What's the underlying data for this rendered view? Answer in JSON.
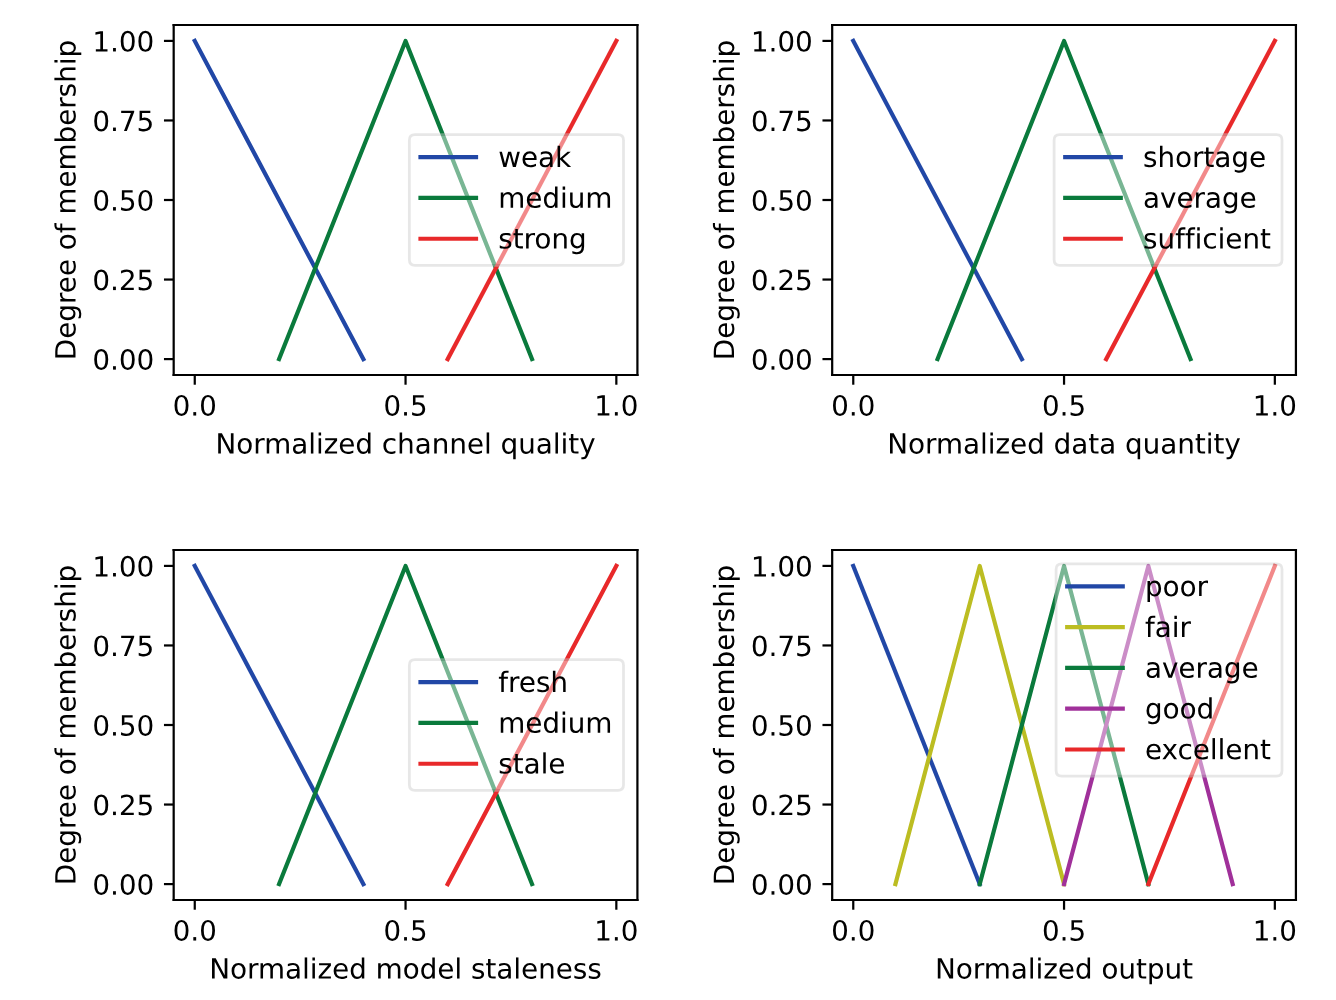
{
  "chart_data": [
    {
      "type": "line",
      "xlabel": "Normalized channel quality",
      "ylabel": "Degree of membership",
      "xlim": [
        -0.05,
        1.05
      ],
      "ylim": [
        -0.05,
        1.05
      ],
      "xticks": [
        {
          "value": 0,
          "label": "0.0"
        },
        {
          "value": 0.5,
          "label": "0.5"
        },
        {
          "value": 1,
          "label": "1.0"
        }
      ],
      "yticks": [
        {
          "value": 0,
          "label": "0.00"
        },
        {
          "value": 0.25,
          "label": "0.25"
        },
        {
          "value": 0.5,
          "label": "0.50"
        },
        {
          "value": 0.75,
          "label": "0.75"
        },
        {
          "value": 1,
          "label": "1.00"
        }
      ],
      "legend": "center right",
      "grid": false,
      "series": [
        {
          "name": "weak",
          "color": "#2147a6",
          "x": [
            0,
            0.4
          ],
          "values": [
            1,
            0
          ]
        },
        {
          "name": "medium",
          "color": "#0a7a3c",
          "x": [
            0.2,
            0.5,
            0.8
          ],
          "values": [
            0,
            1,
            0
          ]
        },
        {
          "name": "strong",
          "color": "#e8292a",
          "x": [
            0.6,
            1
          ],
          "values": [
            0,
            1
          ]
        }
      ]
    },
    {
      "type": "line",
      "xlabel": "Normalized data quantity",
      "ylabel": "Degree of membership",
      "xlim": [
        -0.05,
        1.05
      ],
      "ylim": [
        -0.05,
        1.05
      ],
      "xticks": [
        {
          "value": 0,
          "label": "0.0"
        },
        {
          "value": 0.5,
          "label": "0.5"
        },
        {
          "value": 1,
          "label": "1.0"
        }
      ],
      "yticks": [
        {
          "value": 0,
          "label": "0.00"
        },
        {
          "value": 0.25,
          "label": "0.25"
        },
        {
          "value": 0.5,
          "label": "0.50"
        },
        {
          "value": 0.75,
          "label": "0.75"
        },
        {
          "value": 1,
          "label": "1.00"
        }
      ],
      "legend": "center right",
      "grid": false,
      "series": [
        {
          "name": "shortage",
          "color": "#2147a6",
          "x": [
            0,
            0.4
          ],
          "values": [
            1,
            0
          ]
        },
        {
          "name": "average",
          "color": "#0a7a3c",
          "x": [
            0.2,
            0.5,
            0.8
          ],
          "values": [
            0,
            1,
            0
          ]
        },
        {
          "name": "sufficient",
          "color": "#e8292a",
          "x": [
            0.6,
            1
          ],
          "values": [
            0,
            1
          ]
        }
      ]
    },
    {
      "type": "line",
      "xlabel": "Normalized model staleness",
      "ylabel": "Degree of membership",
      "xlim": [
        -0.05,
        1.05
      ],
      "ylim": [
        -0.05,
        1.05
      ],
      "xticks": [
        {
          "value": 0,
          "label": "0.0"
        },
        {
          "value": 0.5,
          "label": "0.5"
        },
        {
          "value": 1,
          "label": "1.0"
        }
      ],
      "yticks": [
        {
          "value": 0,
          "label": "0.00"
        },
        {
          "value": 0.25,
          "label": "0.25"
        },
        {
          "value": 0.5,
          "label": "0.50"
        },
        {
          "value": 0.75,
          "label": "0.75"
        },
        {
          "value": 1,
          "label": "1.00"
        }
      ],
      "legend": "center right",
      "grid": false,
      "series": [
        {
          "name": "fresh",
          "color": "#2147a6",
          "x": [
            0,
            0.4
          ],
          "values": [
            1,
            0
          ]
        },
        {
          "name": "medium",
          "color": "#0a7a3c",
          "x": [
            0.2,
            0.5,
            0.8
          ],
          "values": [
            0,
            1,
            0
          ]
        },
        {
          "name": "stale",
          "color": "#e8292a",
          "x": [
            0.6,
            1
          ],
          "values": [
            0,
            1
          ]
        }
      ]
    },
    {
      "type": "line",
      "xlabel": "Normalized output",
      "ylabel": "Degree of membership",
      "xlim": [
        -0.05,
        1.05
      ],
      "ylim": [
        -0.05,
        1.05
      ],
      "xticks": [
        {
          "value": 0,
          "label": "0.0"
        },
        {
          "value": 0.5,
          "label": "0.5"
        },
        {
          "value": 1,
          "label": "1.0"
        }
      ],
      "yticks": [
        {
          "value": 0,
          "label": "0.00"
        },
        {
          "value": 0.25,
          "label": "0.25"
        },
        {
          "value": 0.5,
          "label": "0.50"
        },
        {
          "value": 0.75,
          "label": "0.75"
        },
        {
          "value": 1,
          "label": "1.00"
        }
      ],
      "legend": "upper right",
      "grid": false,
      "series": [
        {
          "name": "poor",
          "color": "#2147a6",
          "x": [
            0,
            0.3
          ],
          "values": [
            1,
            0
          ]
        },
        {
          "name": "fair",
          "color": "#bcbd22",
          "x": [
            0.1,
            0.3,
            0.5
          ],
          "values": [
            0,
            1,
            0
          ]
        },
        {
          "name": "average",
          "color": "#0a7a3c",
          "x": [
            0.3,
            0.5,
            0.7
          ],
          "values": [
            0,
            1,
            0
          ]
        },
        {
          "name": "good",
          "color": "#a0309a",
          "x": [
            0.5,
            0.7,
            0.9
          ],
          "values": [
            0,
            1,
            0
          ]
        },
        {
          "name": "excellent",
          "color": "#e8292a",
          "x": [
            0.7,
            1
          ],
          "values": [
            0,
            1
          ]
        }
      ]
    }
  ]
}
